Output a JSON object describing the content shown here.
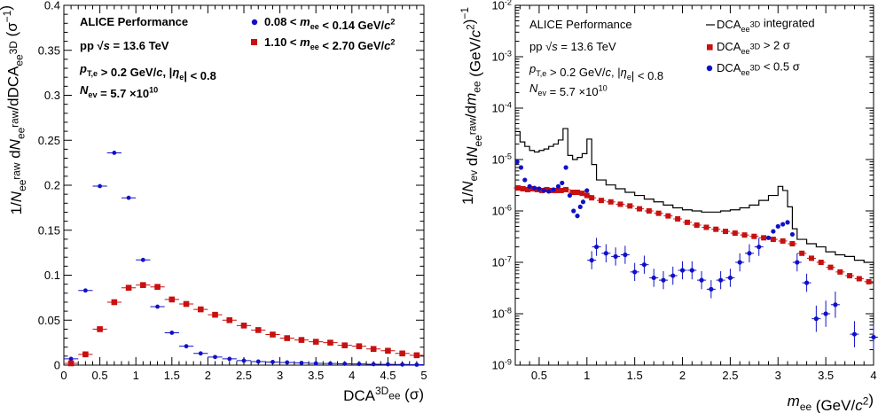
{
  "chart_data": [
    {
      "type": "scatter",
      "id": "left",
      "xlabel_main": "DCA",
      "xlabel_sup": "3D",
      "xlabel_sub": "ee",
      "xlabel_unit": "(σ)",
      "ylabel": "1/N_ee^raw dN_ee^raw/dDCA_ee^3D (σ^−1)",
      "xlim": [
        0,
        5
      ],
      "ylim": [
        0,
        0.4
      ],
      "xticks": [
        "0",
        "0.5",
        "1",
        "1.5",
        "2",
        "2.5",
        "3",
        "3.5",
        "4",
        "4.5",
        "5"
      ],
      "yticks": [
        "0",
        "0.05",
        "0.1",
        "0.15",
        "0.2",
        "0.25",
        "0.3",
        "0.35",
        "0.4"
      ],
      "text_lines": [
        "ALICE Performance",
        "pp √s = 13.6 TeV",
        "p_T,e > 0.2 GeV/c, |η_e| < 0.8",
        "N_ev = 5.7 ×10^10"
      ],
      "legend": [
        {
          "label": "0.08 < m_ee < 0.14 GeV/c²",
          "color": "#1010c8",
          "marker": "circle"
        },
        {
          "label": "1.10 < m_ee < 2.70 GeV/c²",
          "color": "#c81010",
          "marker": "square"
        }
      ],
      "series": [
        {
          "name": "0.08 < m_ee < 0.14 GeV/c²",
          "color": "#1010c8",
          "marker": "circle",
          "x": [
            0.1,
            0.3,
            0.5,
            0.7,
            0.9,
            1.1,
            1.3,
            1.5,
            1.7,
            1.9,
            2.1,
            2.3,
            2.5,
            2.7,
            2.9,
            3.1,
            3.3,
            3.5,
            3.7,
            3.9,
            4.1,
            4.3,
            4.5,
            4.7,
            4.9
          ],
          "y": [
            0.007,
            0.083,
            0.199,
            0.236,
            0.186,
            0.117,
            0.065,
            0.036,
            0.021,
            0.013,
            0.009,
            0.007,
            0.005,
            0.004,
            0.0035,
            0.003,
            0.0025,
            0.002,
            0.0018,
            0.0015,
            0.0013,
            0.001,
            0.0009,
            0.0007,
            0.0005
          ]
        },
        {
          "name": "1.10 < m_ee < 2.70 GeV/c²",
          "color": "#c81010",
          "marker": "square",
          "x": [
            0.1,
            0.3,
            0.5,
            0.7,
            0.9,
            1.1,
            1.3,
            1.5,
            1.7,
            1.9,
            2.1,
            2.3,
            2.5,
            2.7,
            2.9,
            3.1,
            3.3,
            3.5,
            3.7,
            3.9,
            4.1,
            4.3,
            4.5,
            4.7,
            4.9
          ],
          "y": [
            0.002,
            0.012,
            0.04,
            0.07,
            0.086,
            0.089,
            0.087,
            0.073,
            0.068,
            0.062,
            0.056,
            0.05,
            0.044,
            0.039,
            0.034,
            0.03,
            0.028,
            0.026,
            0.025,
            0.022,
            0.021,
            0.018,
            0.016,
            0.013,
            0.011
          ]
        }
      ]
    },
    {
      "type": "line",
      "id": "right",
      "xlabel_main": "m",
      "xlabel_sub": "ee",
      "xlabel_unit": "(GeV/c²)",
      "ylabel": "1/N_ev dN_ee^raw/dm_ee (GeV/c²)^−1",
      "xlim": [
        0.25,
        4
      ],
      "ylog": true,
      "ylim": [
        1e-09,
        0.01
      ],
      "xticks": [
        "0.5",
        "1",
        "1.5",
        "2",
        "2.5",
        "3",
        "3.5",
        "4"
      ],
      "yticks": [
        "10⁻⁹",
        "10⁻⁸",
        "10⁻⁷",
        "10⁻⁶",
        "10⁻⁵",
        "10⁻⁴",
        "10⁻³",
        "10⁻²"
      ],
      "text_lines": [
        "ALICE Performance",
        "pp √s = 13.6 TeV",
        "p_T,e > 0.2 GeV/c, |η_e| < 0.8",
        "N_ev = 5.7 ×10^10"
      ],
      "legend": [
        {
          "label": "DCA_ee^3D integrated",
          "color": "#000000",
          "marker": "line"
        },
        {
          "label": "DCA_ee^3D > 2 σ",
          "color": "#c81010",
          "marker": "square"
        },
        {
          "label": "DCA_ee^3D < 0.5 σ",
          "color": "#1010c8",
          "marker": "circle"
        }
      ],
      "series": [
        {
          "name": "DCA_ee^3D integrated",
          "color": "#000000",
          "marker": "step",
          "x": [
            0.25,
            0.3,
            0.35,
            0.4,
            0.45,
            0.5,
            0.55,
            0.6,
            0.65,
            0.7,
            0.75,
            0.8,
            0.85,
            0.9,
            0.95,
            1.0,
            1.05,
            1.1,
            1.2,
            1.3,
            1.4,
            1.5,
            1.6,
            1.7,
            1.8,
            1.9,
            2.0,
            2.1,
            2.2,
            2.3,
            2.4,
            2.5,
            2.6,
            2.7,
            2.8,
            2.9,
            3.0,
            3.05,
            3.1,
            3.15,
            3.2,
            3.3,
            3.4,
            3.5,
            3.6,
            3.7,
            3.8,
            3.9,
            4.0
          ],
          "y": [
            3.5e-05,
            2.2e-05,
            1.8e-05,
            1.5e-05,
            1.4e-05,
            1.5e-05,
            1.6e-05,
            1.8e-05,
            2e-05,
            2.4e-05,
            4e-05,
            1.2e-05,
            1e-05,
            1.1e-05,
            1.3e-05,
            2.5e-05,
            8e-06,
            4e-06,
            3.2e-06,
            2.7e-06,
            2.3e-06,
            2e-06,
            1.7e-06,
            1.5e-06,
            1.3e-06,
            1.15e-06,
            1.05e-06,
            1e-06,
            9.5e-07,
            9.5e-07,
            1e-06,
            1.05e-06,
            1.15e-06,
            1.3e-06,
            1.6e-06,
            2e-06,
            3e-06,
            2.5e-06,
            1.2e-06,
            4.5e-07,
            2.8e-07,
            2.3e-07,
            2e-07,
            1.6e-07,
            1.4e-07,
            1.3e-07,
            1.1e-07,
            1e-07,
            9e-08
          ]
        },
        {
          "name": "DCA_ee^3D > 2 σ",
          "color": "#c81010",
          "marker": "square",
          "x": [
            0.28,
            0.33,
            0.38,
            0.43,
            0.48,
            0.53,
            0.58,
            0.63,
            0.68,
            0.73,
            0.78,
            0.85,
            0.9,
            0.95,
            1.0,
            1.05,
            1.15,
            1.25,
            1.35,
            1.45,
            1.55,
            1.65,
            1.75,
            1.85,
            1.95,
            2.05,
            2.15,
            2.25,
            2.35,
            2.45,
            2.55,
            2.65,
            2.75,
            2.85,
            2.95,
            3.05,
            3.15,
            3.25,
            3.35,
            3.45,
            3.55,
            3.65,
            3.75,
            3.85,
            3.95
          ],
          "y": [
            2.8e-06,
            2.7e-06,
            2.6e-06,
            2.7e-06,
            2.6e-06,
            2.5e-06,
            2.6e-06,
            2.5e-06,
            2.5e-06,
            2.5e-06,
            2.6e-06,
            2.3e-06,
            2.3e-06,
            2.2e-06,
            2e-06,
            1.8e-06,
            1.6e-06,
            1.5e-06,
            1.35e-06,
            1.25e-06,
            1.1e-06,
            1e-06,
            9e-07,
            8e-07,
            7e-07,
            6e-07,
            5.3e-07,
            4.8e-07,
            4.4e-07,
            4e-07,
            3.7e-07,
            3.4e-07,
            3.2e-07,
            3e-07,
            2.8e-07,
            2.6e-07,
            2.3e-07,
            1.5e-07,
            1.2e-07,
            1e-07,
            8e-08,
            6.5e-08,
            5.5e-08,
            4.8e-08,
            4.2e-08
          ]
        },
        {
          "name": "DCA_ee^3D < 0.5 σ",
          "color": "#1010c8",
          "marker": "circle",
          "x": [
            0.27,
            0.31,
            0.35,
            0.4,
            0.45,
            0.5,
            0.55,
            0.6,
            0.65,
            0.7,
            0.74,
            0.78,
            0.82,
            0.86,
            0.9,
            0.93,
            0.96,
            1.0,
            1.05,
            1.1,
            1.2,
            1.3,
            1.4,
            1.5,
            1.6,
            1.7,
            1.8,
            1.9,
            2.0,
            2.1,
            2.2,
            2.3,
            2.4,
            2.5,
            2.6,
            2.7,
            2.8,
            2.9,
            2.95,
            3.0,
            3.05,
            3.1,
            3.15,
            3.2,
            3.3,
            3.4,
            3.5,
            3.6,
            3.8,
            4.0
          ],
          "y": [
            9e-06,
            7e-06,
            4e-06,
            3e-06,
            2.8e-06,
            2.7e-06,
            2.5e-06,
            2.4e-06,
            2.6e-06,
            3e-06,
            3.5e-06,
            7e-06,
            2e-06,
            1e-06,
            8e-07,
            1.2e-06,
            1.5e-06,
            2.5e-06,
            1.1e-07,
            2e-07,
            1.5e-07,
            1.3e-07,
            1.4e-07,
            6.5e-08,
            9e-08,
            5e-08,
            4.5e-08,
            5.5e-08,
            7e-08,
            7e-08,
            4.5e-08,
            3e-08,
            4.5e-08,
            5e-08,
            1e-07,
            1.5e-07,
            2e-07,
            3e-07,
            4e-07,
            5e-07,
            5.5e-07,
            6e-07,
            3.5e-07,
            1e-07,
            4e-08,
            8e-09,
            1e-08,
            1.5e-08,
            4e-09,
            3.5e-09
          ]
        }
      ]
    }
  ]
}
